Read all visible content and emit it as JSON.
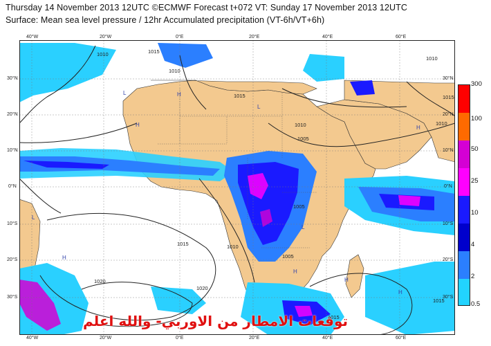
{
  "header": {
    "line1": "Thursday 14 November 2013 12UTC ©ECMWF Forecast t+072 VT: Sunday 17 November 2013 12UTC",
    "line2": "Surface: Mean sea level pressure / 12hr Accumulated precipitation (VT-6h/VT+6h)"
  },
  "axes": {
    "lon_top": [
      "40°W",
      "20°W",
      "0°E",
      "20°E",
      "40°E",
      "60°E"
    ],
    "lon_bottom": [
      "40°W",
      "20°W",
      "0°E",
      "20°E",
      "40°E",
      "60°E"
    ],
    "lat_left": [
      "30°N",
      "20°N",
      "10°N",
      "0°N",
      "10°S",
      "20°S",
      "30°S"
    ],
    "lat_right": [
      "30°N",
      "20°N",
      "10°N",
      "0°N",
      "10°S",
      "20°S",
      "30°S"
    ]
  },
  "isobars": [
    "1010",
    "1010",
    "1015",
    "1015",
    "1010",
    "1005",
    "1010",
    "1005",
    "1015",
    "1010",
    "1005",
    "1020",
    "1020",
    "1015",
    "1015",
    "1010",
    "1015"
  ],
  "pressure_centers": [
    "L",
    "L",
    "H",
    "H",
    "L",
    "H",
    "H",
    "H",
    "H",
    "L",
    "H"
  ],
  "legend": {
    "labels": [
      "300",
      "100",
      "50",
      "25",
      "10",
      "4",
      "2",
      "0.5"
    ],
    "colors": [
      "#ff0000",
      "#ff6a00",
      "#d400d4",
      "#ff00ff",
      "#1a1aff",
      "#0000cc",
      "#2b7fff",
      "#22d3ff"
    ]
  },
  "overlay_text": "توقعات الامطار من الاوربي- والله اعلم",
  "colors": {
    "ocean": "#ffffff",
    "land": "#f3c98f",
    "light_precip": "#2ad0ff",
    "moderate_precip": "#2b7fff",
    "heavy_precip": "#1a1aff",
    "very_heavy_precip": "#ff00ff",
    "overlay_text": "#e01010"
  }
}
